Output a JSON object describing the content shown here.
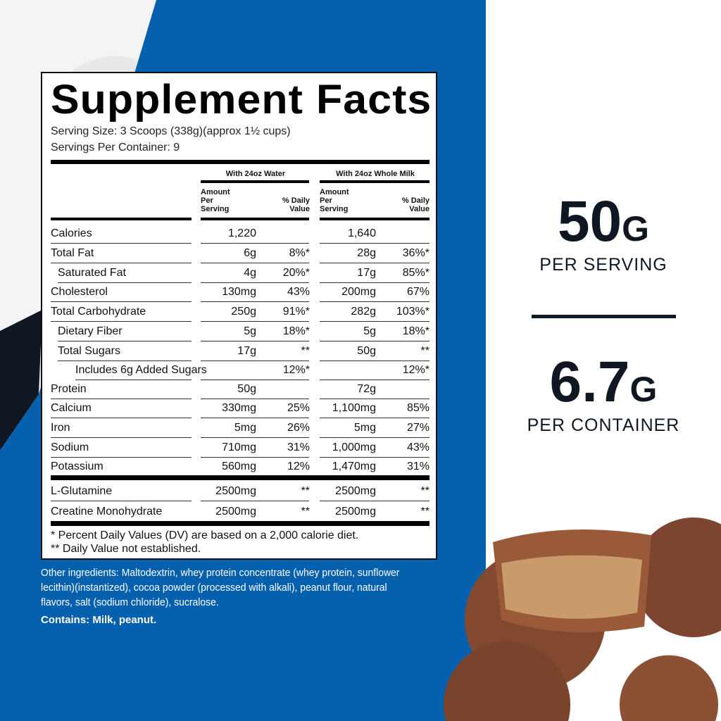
{
  "label": {
    "title": "Supplement Facts",
    "serving_size": "Serving Size: 3 Scoops (338g)(approx 1½ cups)",
    "servings_per_container": "Servings Per Container: 9",
    "col_water": "With 24oz Water",
    "col_milk": "With 24oz Whole Milk",
    "amount_header": "Amount Per Serving",
    "dv_header": "% Daily Value",
    "rows": [
      {
        "name": "Calories",
        "w": "1,220",
        "wdv": "",
        "m": "1,640",
        "mdv": ""
      },
      {
        "name": "Total Fat",
        "w": "6g",
        "wdv": "8%*",
        "m": "28g",
        "mdv": "36%*"
      },
      {
        "name": "Saturated Fat",
        "w": "4g",
        "wdv": "20%*",
        "m": "17g",
        "mdv": "85%*"
      },
      {
        "name": "Cholesterol",
        "w": "130mg",
        "wdv": "43%",
        "m": "200mg",
        "mdv": "67%"
      },
      {
        "name": "Total Carbohydrate",
        "w": "250g",
        "wdv": "91%*",
        "m": "282g",
        "mdv": "103%*"
      },
      {
        "name": "Dietary Fiber",
        "w": "5g",
        "wdv": "18%*",
        "m": "5g",
        "mdv": "18%*"
      },
      {
        "name": "Total Sugars",
        "w": "17g",
        "wdv": "**",
        "m": "50g",
        "mdv": "**"
      },
      {
        "name": "Includes 6g Added Sugars",
        "w": "",
        "wdv": "12%*",
        "m": "",
        "mdv": "12%*"
      },
      {
        "name": "Protein",
        "w": "50g",
        "wdv": "",
        "m": "72g",
        "mdv": ""
      },
      {
        "name": "Calcium",
        "w": "330mg",
        "wdv": "25%",
        "m": "1,100mg",
        "mdv": "85%"
      },
      {
        "name": "Iron",
        "w": "5mg",
        "wdv": "26%",
        "m": "5mg",
        "mdv": "27%"
      },
      {
        "name": "Sodium",
        "w": "710mg",
        "wdv": "31%",
        "m": "1,000mg",
        "mdv": "43%"
      },
      {
        "name": "Potassium",
        "w": "560mg",
        "wdv": "12%",
        "m": "1,470mg",
        "mdv": "31%"
      },
      {
        "name": "L-Glutamine",
        "w": "2500mg",
        "wdv": "**",
        "m": "2500mg",
        "mdv": "**"
      },
      {
        "name": "Creatine Monohydrate",
        "w": "2500mg",
        "wdv": "**",
        "m": "2500mg",
        "mdv": "**"
      }
    ],
    "footnote1": "* Percent Daily Values (DV) are based on a 2,000 calorie diet.",
    "footnote2": "** Daily Value not established."
  },
  "other_ingredients": "Other ingredients: Maltodextrin, whey protein concentrate (whey protein, sunflower lecithin)(instantized), cocoa powder (processed with alkali), peanut flour, natural flavors, salt (sodium chloride), sucralose.",
  "contains": "Contains: Milk, peanut.",
  "stats": [
    {
      "value": "50",
      "unit": "G",
      "caption": "PER SERVING"
    },
    {
      "value": "6.7",
      "unit": "G",
      "caption": "PER CONTAINER"
    }
  ],
  "colors": {
    "blue": "#0560ae",
    "navy": "#0f1722",
    "chocolate": "#8a4f36"
  }
}
